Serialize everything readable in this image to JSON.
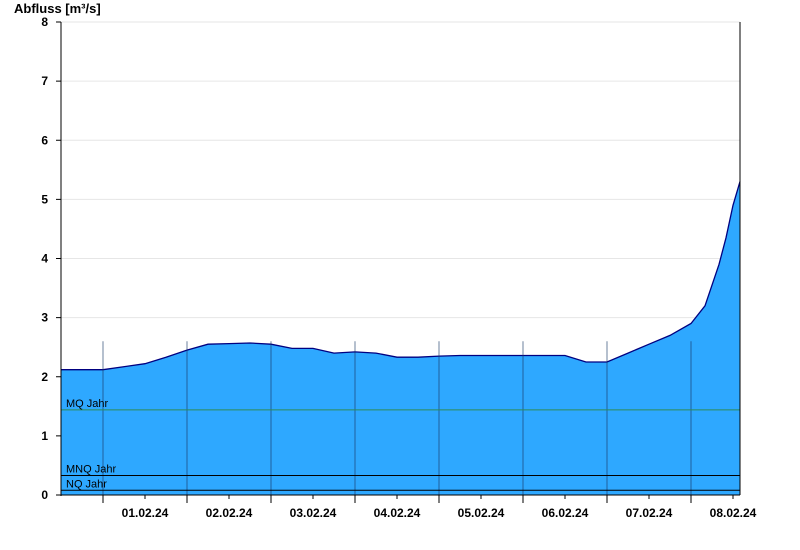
{
  "chart_data": {
    "type": "area",
    "ylabel": "Abfluss [m³/s]",
    "ylim": [
      0,
      8
    ],
    "yticks": [
      "0",
      "1",
      "2",
      "3",
      "4",
      "5",
      "6",
      "7",
      "8"
    ],
    "xlim": [
      "31.01.24 12:00",
      "08.02.24 14:00"
    ],
    "xticks": [
      "01.02.24",
      "02.02.24",
      "03.02.24",
      "04.02.24",
      "05.02.24",
      "06.02.24",
      "07.02.24",
      "08.02.24"
    ],
    "grid": true,
    "fill_color": "#2ea8ff",
    "line_color": "#000080",
    "series": [
      {
        "x": [
          "31.01.24 12:00",
          "01.02.24 00:00",
          "01.02.24 12:00",
          "01.02.24 18:00",
          "02.02.24 00:00",
          "02.02.24 06:00",
          "02.02.24 12:00",
          "02.02.24 18:00",
          "03.02.24 00:00",
          "03.02.24 06:00",
          "03.02.24 12:00",
          "03.02.24 18:00",
          "04.02.24 00:00",
          "04.02.24 06:00",
          "04.02.24 12:00",
          "04.02.24 18:00",
          "05.02.24 00:00",
          "05.02.24 06:00",
          "05.02.24 12:00",
          "05.02.24 18:00",
          "06.02.24 00:00",
          "06.02.24 06:00",
          "06.02.24 12:00",
          "06.02.24 18:00",
          "07.02.24 00:00",
          "07.02.24 06:00",
          "07.02.24 12:00",
          "07.02.24 18:00",
          "08.02.24 00:00",
          "08.02.24 04:00",
          "08.02.24 08:00",
          "08.02.24 10:00",
          "08.02.24 12:00",
          "08.02.24 14:00"
        ],
        "values": [
          2.12,
          2.12,
          2.22,
          2.33,
          2.45,
          2.55,
          2.56,
          2.57,
          2.55,
          2.48,
          2.48,
          2.4,
          2.42,
          2.4,
          2.33,
          2.33,
          2.35,
          2.36,
          2.36,
          2.36,
          2.36,
          2.36,
          2.36,
          2.25,
          2.25,
          2.4,
          2.55,
          2.7,
          2.9,
          3.2,
          3.9,
          4.35,
          4.9,
          5.3
        ]
      }
    ],
    "reference_lines": [
      {
        "label": "MQ Jahr",
        "value": 1.44,
        "color": "#2e8b57"
      },
      {
        "label": "MNQ Jahr",
        "value": 0.33,
        "color": "#000000"
      },
      {
        "label": "NQ Jahr",
        "value": 0.08,
        "color": "#000000"
      }
    ]
  }
}
